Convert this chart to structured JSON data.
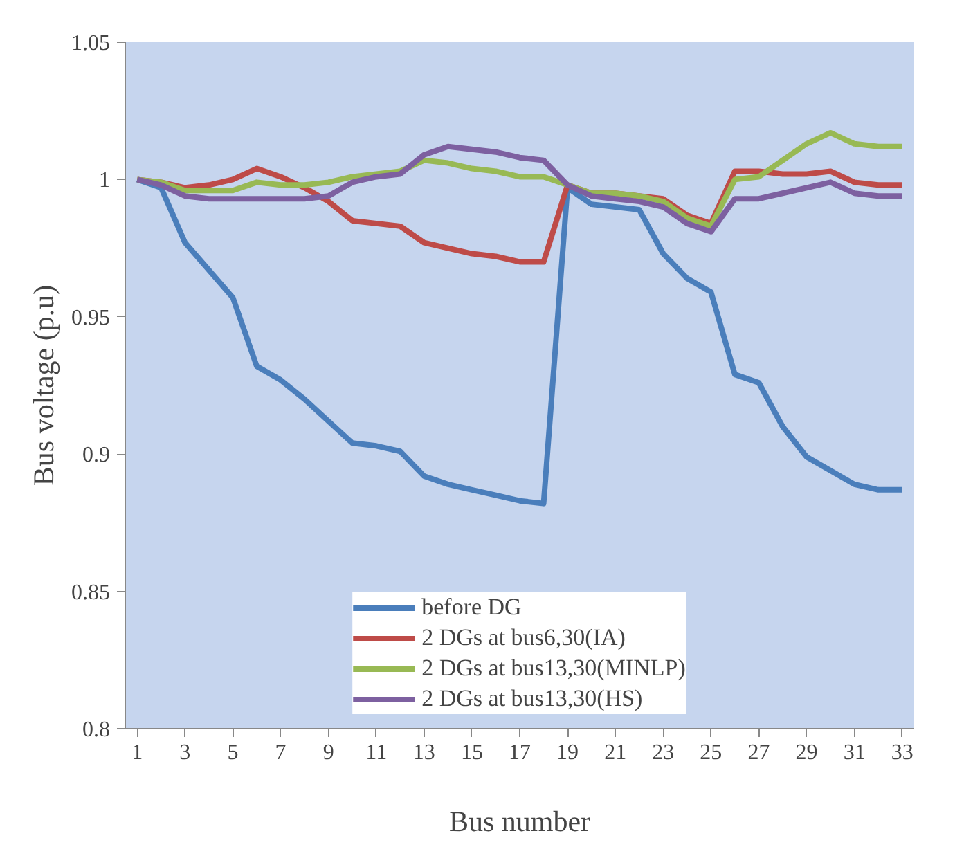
{
  "chart_data": {
    "type": "line",
    "xlabel": "Bus number",
    "ylabel": "Bus voltage (p.u)",
    "x": [
      1,
      2,
      3,
      4,
      5,
      6,
      7,
      8,
      9,
      10,
      11,
      12,
      13,
      14,
      15,
      16,
      17,
      18,
      19,
      20,
      21,
      22,
      23,
      24,
      25,
      26,
      27,
      28,
      29,
      30,
      31,
      32,
      33
    ],
    "xlim": [
      0.5,
      33.5
    ],
    "xticks": [
      1,
      3,
      5,
      7,
      9,
      11,
      13,
      15,
      17,
      19,
      21,
      23,
      25,
      27,
      29,
      31,
      33
    ],
    "ylim": [
      0.8,
      1.05
    ],
    "yticks": [
      0.8,
      0.85,
      0.9,
      0.95,
      1,
      1.05
    ],
    "grid": false,
    "legend": "bottom",
    "marker": "none",
    "line_style": "solid",
    "series": [
      {
        "name": "before DG",
        "color": "#4a7ebb",
        "values": [
          1.0,
          0.997,
          0.977,
          0.967,
          0.957,
          0.932,
          0.927,
          0.92,
          0.912,
          0.904,
          0.903,
          0.901,
          0.892,
          0.889,
          0.887,
          0.885,
          0.883,
          0.882,
          0.997,
          0.991,
          0.99,
          0.989,
          0.973,
          0.964,
          0.959,
          0.929,
          0.926,
          0.91,
          0.899,
          0.894,
          0.889,
          0.887,
          0.887
        ]
      },
      {
        "name": "2 DGs at bus6,30(IA)",
        "color": "#be4b48",
        "values": [
          1.0,
          0.999,
          0.997,
          0.998,
          1.0,
          1.004,
          1.001,
          0.997,
          0.992,
          0.985,
          0.984,
          0.983,
          0.977,
          0.975,
          0.973,
          0.972,
          0.97,
          0.97,
          0.998,
          0.995,
          0.995,
          0.994,
          0.993,
          0.987,
          0.984,
          1.003,
          1.003,
          1.002,
          1.002,
          1.003,
          0.999,
          0.998,
          0.998
        ]
      },
      {
        "name": "2 DGs at bus13,30(MINLP)",
        "color": "#98b954",
        "values": [
          1.0,
          0.999,
          0.996,
          0.996,
          0.996,
          0.999,
          0.998,
          0.998,
          0.999,
          1.001,
          1.002,
          1.003,
          1.007,
          1.006,
          1.004,
          1.003,
          1.001,
          1.001,
          0.998,
          0.995,
          0.995,
          0.994,
          0.992,
          0.986,
          0.983,
          1.0,
          1.001,
          1.007,
          1.013,
          1.017,
          1.013,
          1.012,
          1.012
        ]
      },
      {
        "name": "2 DGs at bus13,30(HS)",
        "color": "#7d60a0",
        "values": [
          1.0,
          0.998,
          0.994,
          0.993,
          0.993,
          0.993,
          0.993,
          0.993,
          0.994,
          0.999,
          1.001,
          1.002,
          1.009,
          1.012,
          1.011,
          1.01,
          1.008,
          1.007,
          0.998,
          0.994,
          0.993,
          0.992,
          0.99,
          0.984,
          0.981,
          0.993,
          0.993,
          0.995,
          0.997,
          0.999,
          0.995,
          0.994,
          0.994
        ]
      }
    ]
  }
}
